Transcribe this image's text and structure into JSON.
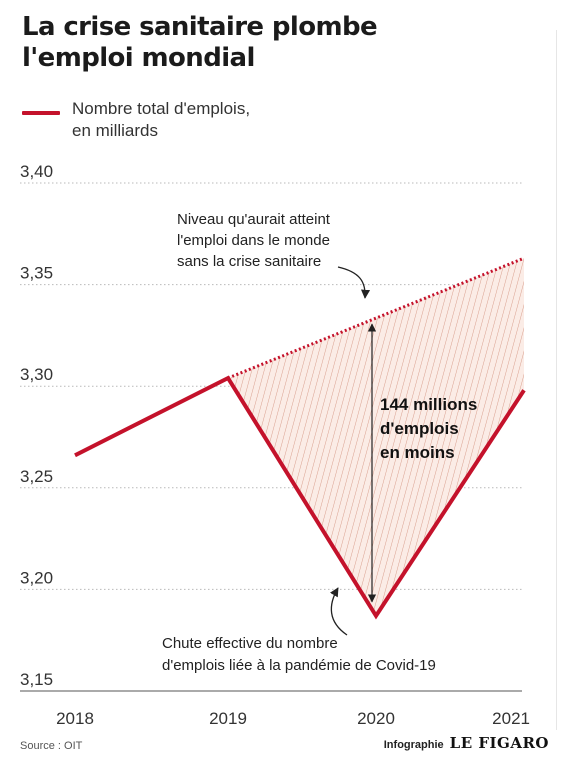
{
  "header": {
    "title_line1": "La crise sanitaire plombe",
    "title_line2": "l'emploi mondial"
  },
  "legend": {
    "label_line1": "Nombre total d'emplois,",
    "label_line2": "en milliards"
  },
  "footer": {
    "source": "Source : OIT",
    "credit_prefix": "Infographie",
    "credit_brand": "LE FIGARO"
  },
  "colors": {
    "series": "#c4122b",
    "hatch": "#d9a08f",
    "hatch_fill": "#fbece6",
    "grid": "#b9b9b9",
    "text": "#333333"
  },
  "chart_data": {
    "type": "line",
    "x": [
      2018,
      2019,
      2020,
      2021
    ],
    "series": [
      {
        "name": "Nombre total d'emplois, en milliards",
        "values": [
          3.266,
          3.304,
          3.187,
          3.298
        ]
      }
    ],
    "counterfactual": {
      "x": [
        2019,
        2021
      ],
      "values": [
        3.304,
        3.363
      ]
    },
    "yticks": [
      "3,40",
      "3,35",
      "3,30",
      "3,25",
      "3,20",
      "3,15"
    ],
    "ytick_values": [
      3.4,
      3.35,
      3.3,
      3.25,
      3.2,
      3.15
    ],
    "xticks": [
      "2018",
      "2019",
      "2020",
      "2021"
    ],
    "ylim": [
      3.15,
      3.4
    ],
    "grid": true,
    "annotations": {
      "counterfactual_line1": "Niveau qu'aurait atteint",
      "counterfactual_line2": "l'emploi dans le monde",
      "counterfactual_line3": "sans la crise sanitaire",
      "gap_line1": "144 millions",
      "gap_line2": "d'emplois",
      "gap_line3": "en moins",
      "actual_line1": "Chute effective du nombre",
      "actual_line2": "d'emplois liée à la pandémie de Covid-19"
    }
  }
}
